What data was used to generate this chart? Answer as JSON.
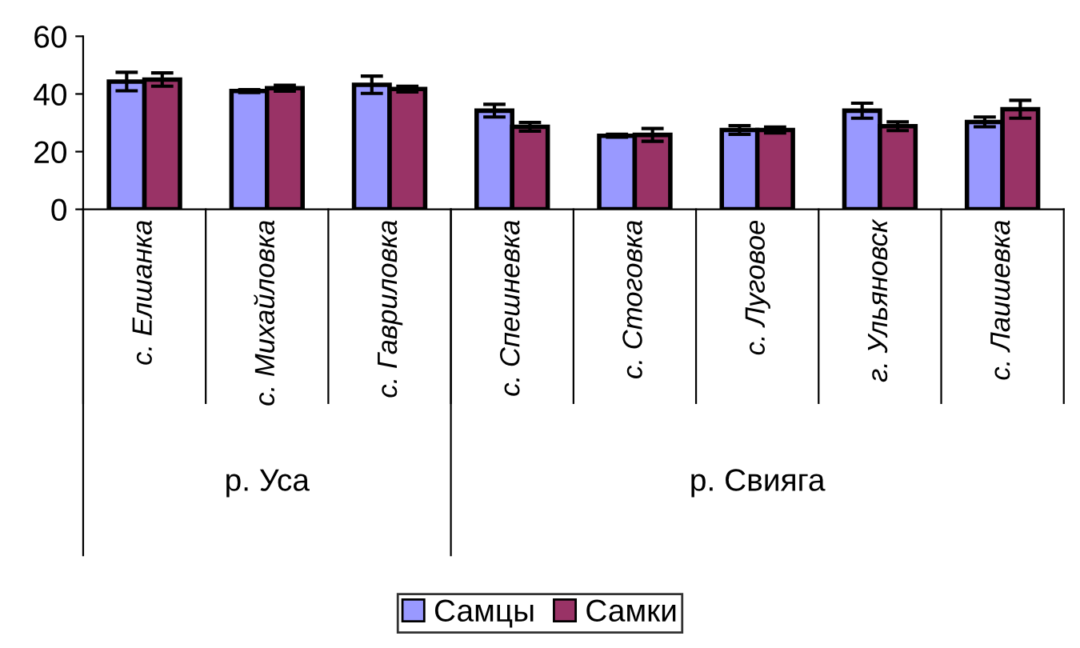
{
  "chart_data": {
    "type": "bar",
    "categories": [
      "с. Елшанка",
      "с. Михайловка",
      "с. Гавриловка",
      "с. Спешневка",
      "с. Стоговка",
      "с. Луговое",
      "г. Ульяновск",
      "с. Лаишевка"
    ],
    "series": [
      {
        "name": "Самцы",
        "color": "#9999ff",
        "values": [
          44.3,
          41,
          43.2,
          34.2,
          25.5,
          27.5,
          34.2,
          30.3
        ],
        "errors": [
          3.2,
          0.5,
          3,
          2.2,
          0.5,
          1.5,
          2.6,
          1.7
        ]
      },
      {
        "name": "Самки",
        "color": "#993366",
        "values": [
          45,
          42,
          41.7,
          28.6,
          25.8,
          27.5,
          28.8,
          34.7
        ],
        "errors": [
          2.3,
          1,
          1,
          1.5,
          2.2,
          1,
          1.5,
          3.1
        ]
      }
    ],
    "annotations": [
      "р. Уса",
      "р. Свияга"
    ],
    "ylim": [
      0,
      60
    ],
    "yticks": [
      0,
      20,
      40,
      60
    ],
    "legend": "bottom",
    "grid": false
  }
}
